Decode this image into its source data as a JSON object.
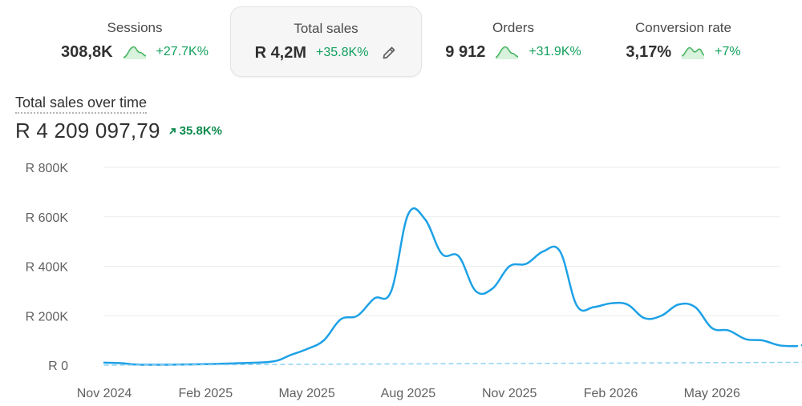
{
  "metrics": [
    {
      "label": "Sessions",
      "value": "308,8K",
      "change": "+27.7K%",
      "active": false
    },
    {
      "label": "Total sales",
      "value": "R 4,2M",
      "change": "+35.8K%",
      "active": true
    },
    {
      "label": "Orders",
      "value": "9 912",
      "change": "+31.9K%",
      "active": false
    },
    {
      "label": "Conversion rate",
      "value": "3,17%",
      "change": "+7%",
      "active": false
    }
  ],
  "icons": {
    "sparkline": "sparkline-icon",
    "edit": "pencil-icon",
    "trend": "arrow-up-right-icon"
  },
  "colors": {
    "line": "#1da1e6",
    "comparison": "#8fd0f2",
    "positive": "#12a05c",
    "grid": "#ebebeb"
  },
  "chart_title": "Total sales over time",
  "total_value": "R 4 209 097,79",
  "total_change": "35.8K%",
  "chart_data": {
    "type": "line",
    "title": "Total sales over time",
    "xlabel": "",
    "ylabel": "",
    "ylim": [
      0,
      800000
    ],
    "y_ticks": [
      {
        "value": 0,
        "label": "R 0"
      },
      {
        "value": 200000,
        "label": "R 200K"
      },
      {
        "value": 400000,
        "label": "R 400K"
      },
      {
        "value": 600000,
        "label": "R 600K"
      },
      {
        "value": 800000,
        "label": "R 800K"
      }
    ],
    "x_ticks": [
      {
        "x": 0,
        "label": "Nov 2024"
      },
      {
        "x": 3,
        "label": "Feb 2025"
      },
      {
        "x": 6,
        "label": "May 2025"
      },
      {
        "x": 9,
        "label": "Aug 2025"
      },
      {
        "x": 12,
        "label": "Nov 2025"
      },
      {
        "x": 15,
        "label": "Feb 2026"
      },
      {
        "x": 18,
        "label": "May 2026"
      }
    ],
    "grid": true,
    "series": [
      {
        "style": "solid",
        "points": [
          [
            0,
            10000
          ],
          [
            0.5,
            8000
          ],
          [
            1,
            2000
          ],
          [
            2,
            2000
          ],
          [
            3,
            4000
          ],
          [
            4,
            8000
          ],
          [
            5,
            15000
          ],
          [
            5.5,
            40000
          ],
          [
            6,
            65000
          ],
          [
            6.5,
            100000
          ],
          [
            7,
            185000
          ],
          [
            7.5,
            200000
          ],
          [
            8,
            270000
          ],
          [
            8.5,
            300000
          ],
          [
            9,
            610000
          ],
          [
            9.5,
            590000
          ],
          [
            10,
            450000
          ],
          [
            10.5,
            440000
          ],
          [
            11,
            300000
          ],
          [
            11.5,
            310000
          ],
          [
            12,
            400000
          ],
          [
            12.5,
            410000
          ],
          [
            13,
            460000
          ],
          [
            13.5,
            460000
          ],
          [
            14,
            240000
          ],
          [
            14.5,
            235000
          ],
          [
            15,
            250000
          ],
          [
            15.5,
            245000
          ],
          [
            16,
            190000
          ],
          [
            16.5,
            200000
          ],
          [
            17,
            245000
          ],
          [
            17.5,
            235000
          ],
          [
            18,
            150000
          ],
          [
            18.5,
            140000
          ],
          [
            19,
            105000
          ],
          [
            19.5,
            100000
          ],
          [
            20,
            80000
          ],
          [
            20.5,
            77000
          ]
        ]
      },
      {
        "style": "dotted",
        "points": [
          [
            20.5,
            77000
          ],
          [
            21,
            90000
          ],
          [
            21.4,
            110000
          ]
        ]
      },
      {
        "style": "dashed",
        "points": [
          [
            0,
            0
          ],
          [
            21.4,
            12000
          ]
        ]
      }
    ]
  }
}
